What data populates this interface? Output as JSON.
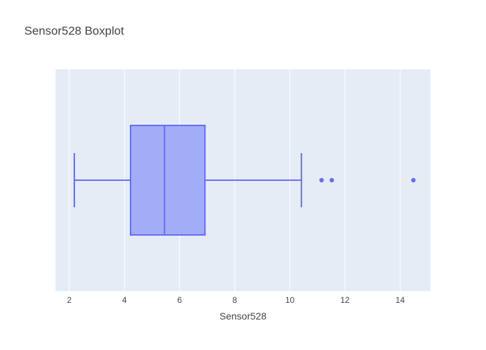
{
  "chart_data": {
    "type": "box",
    "title": "Sensor528 Boxplot",
    "xlabel": "Sensor528",
    "ylabel": "",
    "xlim": [
      1.5,
      15.1
    ],
    "x_ticks": [
      2,
      4,
      6,
      8,
      10,
      12,
      14
    ],
    "orientation": "horizontal",
    "grid": true,
    "series": [
      {
        "lower_whisker": 2.18,
        "q1": 4.22,
        "median": 5.45,
        "q3": 6.92,
        "upper_whisker": 10.42,
        "outliers": [
          11.15,
          11.52,
          14.48
        ]
      }
    ],
    "colors": {
      "box_fill": "#a3acf7",
      "box_line": "#636efa",
      "plot_bg": "#e5ecf6",
      "grid": "#ffffff",
      "title_text": "#444444",
      "tick_text": "#444444"
    }
  }
}
